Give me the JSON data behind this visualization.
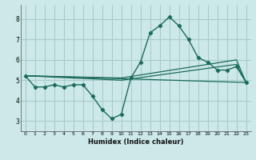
{
  "xlabel": "Humidex (Indice chaleur)",
  "bg_color": "#cce8e8",
  "grid_color": "#aacccc",
  "line_color": "#1a6b5a",
  "xlim": [
    -0.5,
    23.5
  ],
  "ylim": [
    2.5,
    8.7
  ],
  "xticks": [
    0,
    1,
    2,
    3,
    4,
    5,
    6,
    7,
    8,
    9,
    10,
    11,
    12,
    13,
    14,
    15,
    16,
    17,
    18,
    19,
    20,
    21,
    22,
    23
  ],
  "yticks": [
    3,
    4,
    5,
    6,
    7,
    8
  ],
  "line1_x": [
    0,
    1,
    2,
    3,
    4,
    5,
    6,
    7,
    8,
    9,
    10,
    11,
    12,
    13,
    14,
    15,
    16,
    17,
    18,
    19,
    20,
    21,
    22,
    23
  ],
  "line1_y": [
    5.22,
    4.67,
    4.67,
    4.78,
    4.67,
    4.78,
    4.78,
    4.22,
    3.56,
    3.11,
    3.33,
    5.11,
    5.89,
    7.33,
    7.67,
    8.11,
    7.67,
    7.0,
    6.11,
    5.89,
    5.5,
    5.5,
    5.67,
    4.89
  ],
  "line2_x": [
    0,
    23
  ],
  "line2_y": [
    5.22,
    4.89
  ],
  "line3_x": [
    0,
    10,
    22,
    23
  ],
  "line3_y": [
    5.22,
    5.0,
    5.78,
    4.89
  ],
  "line4_x": [
    0,
    10,
    22,
    23
  ],
  "line4_y": [
    5.22,
    5.11,
    6.0,
    4.89
  ]
}
